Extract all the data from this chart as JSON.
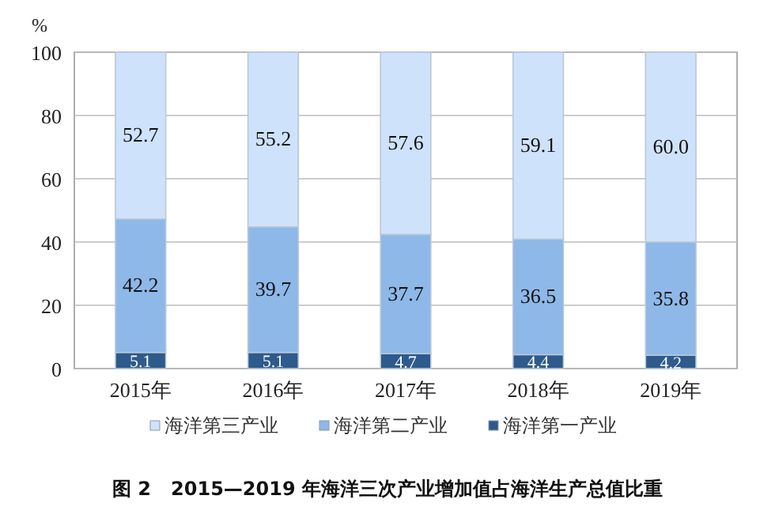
{
  "chart_data": {
    "type": "bar",
    "stacked": true,
    "title": "图 2   2015—2019 年海洋三次产业增加值占海洋生产总值比重",
    "ylabel": "%",
    "categories": [
      "2015年",
      "2016年",
      "2017年",
      "2018年",
      "2019年"
    ],
    "series": [
      {
        "name": "海洋第一产业",
        "color": "#2e5a8c",
        "values": [
          5.1,
          5.1,
          4.7,
          4.4,
          4.2
        ],
        "value_labels": [
          "5.1",
          "5.1",
          "4.7",
          "4.4",
          "4.2"
        ]
      },
      {
        "name": "海洋第二产业",
        "color": "#8db8e8",
        "values": [
          42.2,
          39.7,
          37.7,
          36.5,
          35.8
        ],
        "value_labels": [
          "42.2",
          "39.7",
          "37.7",
          "36.5",
          "35.8"
        ]
      },
      {
        "name": "海洋第三产业",
        "color": "#cfe2fb",
        "values": [
          52.7,
          55.2,
          57.6,
          59.1,
          60.0
        ],
        "value_labels": [
          "52.7",
          "55.2",
          "57.6",
          "59.1",
          "60.0"
        ]
      }
    ],
    "ylim": [
      0,
      100
    ],
    "yticks": [
      0,
      20,
      40,
      60,
      80,
      100
    ],
    "grid": "y",
    "legend": "bottom"
  }
}
